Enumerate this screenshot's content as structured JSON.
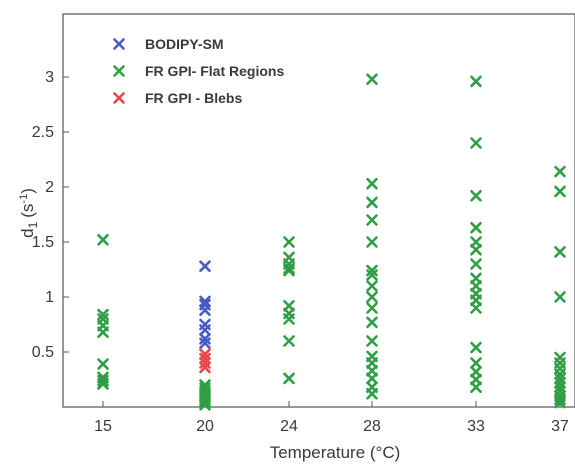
{
  "chart_data": {
    "type": "scatter",
    "xlabel": "Temperature (°C)",
    "ylabel": "d",
    "ylabel_subscript": "1",
    "ylabel_unit": "(s",
    "ylabel_unit_exponent": "-1",
    "ylabel_unit_close": ")",
    "x_categories": [
      "15",
      "20",
      "24",
      "28",
      "33",
      "37"
    ],
    "y_ticks": [
      0.5,
      1,
      1.5,
      2,
      2.5,
      3
    ],
    "y_tick_labels": [
      "0.5",
      "1",
      "1.5",
      "2",
      "2.5",
      "3"
    ],
    "ylim": [
      0,
      3.45
    ],
    "grid": false,
    "legend_position": "top-left",
    "series": [
      {
        "name": "BODIPY-SM",
        "color": "#4a5bc4",
        "points": [
          {
            "x": "20",
            "y": 1.28
          },
          {
            "x": "20",
            "y": 0.96
          },
          {
            "x": "20",
            "y": 0.93
          },
          {
            "x": "20",
            "y": 0.88
          },
          {
            "x": "20",
            "y": 0.75
          },
          {
            "x": "20",
            "y": 0.7
          },
          {
            "x": "20",
            "y": 0.62
          },
          {
            "x": "20",
            "y": 0.58
          }
        ]
      },
      {
        "name": "FR GPI- Flat Regions",
        "color": "#2f9e44",
        "points": [
          {
            "x": "15",
            "y": 1.52
          },
          {
            "x": "15",
            "y": 0.84
          },
          {
            "x": "15",
            "y": 0.8
          },
          {
            "x": "15",
            "y": 0.74
          },
          {
            "x": "15",
            "y": 0.68
          },
          {
            "x": "15",
            "y": 0.39
          },
          {
            "x": "15",
            "y": 0.27
          },
          {
            "x": "15",
            "y": 0.24
          },
          {
            "x": "15",
            "y": 0.21
          },
          {
            "x": "20",
            "y": 0.2
          },
          {
            "x": "20",
            "y": 0.17
          },
          {
            "x": "20",
            "y": 0.14
          },
          {
            "x": "20",
            "y": 0.12
          },
          {
            "x": "20",
            "y": 0.1
          },
          {
            "x": "20",
            "y": 0.08
          },
          {
            "x": "20",
            "y": 0.06
          },
          {
            "x": "20",
            "y": 0.04
          },
          {
            "x": "20",
            "y": 0.02
          },
          {
            "x": "24",
            "y": 1.5
          },
          {
            "x": "24",
            "y": 1.36
          },
          {
            "x": "24",
            "y": 1.3
          },
          {
            "x": "24",
            "y": 1.26
          },
          {
            "x": "24",
            "y": 1.24
          },
          {
            "x": "24",
            "y": 0.92
          },
          {
            "x": "24",
            "y": 0.85
          },
          {
            "x": "24",
            "y": 0.8
          },
          {
            "x": "24",
            "y": 0.6
          },
          {
            "x": "24",
            "y": 0.26
          },
          {
            "x": "28",
            "y": 2.98
          },
          {
            "x": "28",
            "y": 2.03
          },
          {
            "x": "28",
            "y": 1.86
          },
          {
            "x": "28",
            "y": 1.7
          },
          {
            "x": "28",
            "y": 1.5
          },
          {
            "x": "28",
            "y": 1.24
          },
          {
            "x": "28",
            "y": 1.2
          },
          {
            "x": "28",
            "y": 1.1
          },
          {
            "x": "28",
            "y": 1.0
          },
          {
            "x": "28",
            "y": 0.9
          },
          {
            "x": "28",
            "y": 0.77
          },
          {
            "x": "28",
            "y": 0.6
          },
          {
            "x": "28",
            "y": 0.46
          },
          {
            "x": "28",
            "y": 0.4
          },
          {
            "x": "28",
            "y": 0.33
          },
          {
            "x": "28",
            "y": 0.26
          },
          {
            "x": "28",
            "y": 0.18
          },
          {
            "x": "28",
            "y": 0.12
          },
          {
            "x": "33",
            "y": 2.96
          },
          {
            "x": "33",
            "y": 2.4
          },
          {
            "x": "33",
            "y": 1.92
          },
          {
            "x": "33",
            "y": 1.63
          },
          {
            "x": "33",
            "y": 1.5
          },
          {
            "x": "33",
            "y": 1.43
          },
          {
            "x": "33",
            "y": 1.3
          },
          {
            "x": "33",
            "y": 1.17
          },
          {
            "x": "33",
            "y": 1.1
          },
          {
            "x": "33",
            "y": 1.03
          },
          {
            "x": "33",
            "y": 0.97
          },
          {
            "x": "33",
            "y": 0.9
          },
          {
            "x": "33",
            "y": 0.54
          },
          {
            "x": "33",
            "y": 0.4
          },
          {
            "x": "33",
            "y": 0.32
          },
          {
            "x": "33",
            "y": 0.25
          },
          {
            "x": "33",
            "y": 0.18
          },
          {
            "x": "37",
            "y": 2.14
          },
          {
            "x": "37",
            "y": 1.96
          },
          {
            "x": "37",
            "y": 1.41
          },
          {
            "x": "37",
            "y": 1.0
          },
          {
            "x": "37",
            "y": 0.45
          },
          {
            "x": "37",
            "y": 0.4
          },
          {
            "x": "37",
            "y": 0.35
          },
          {
            "x": "37",
            "y": 0.3
          },
          {
            "x": "37",
            "y": 0.26
          },
          {
            "x": "37",
            "y": 0.22
          },
          {
            "x": "37",
            "y": 0.18
          },
          {
            "x": "37",
            "y": 0.14
          },
          {
            "x": "37",
            "y": 0.1
          },
          {
            "x": "37",
            "y": 0.07
          },
          {
            "x": "37",
            "y": 0.04
          }
        ]
      },
      {
        "name": "FR GPI - Blebs",
        "color": "#e8474a",
        "points": [
          {
            "x": "20",
            "y": 0.48
          },
          {
            "x": "20",
            "y": 0.44
          },
          {
            "x": "20",
            "y": 0.4
          },
          {
            "x": "20",
            "y": 0.36
          }
        ]
      }
    ]
  }
}
